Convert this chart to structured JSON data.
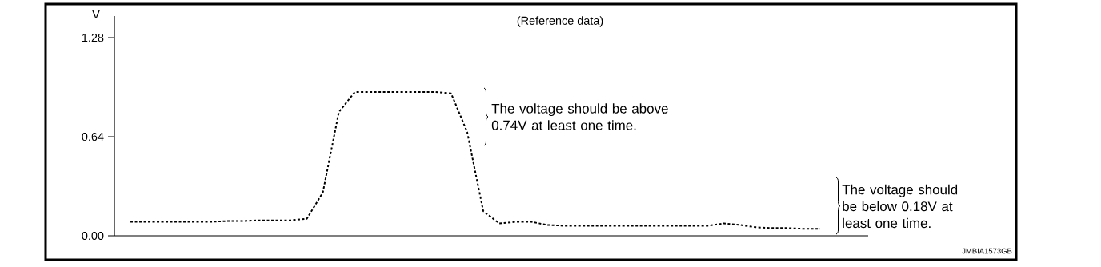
{
  "chart_data": {
    "type": "line",
    "title": "(Reference data)",
    "ylabel": "V",
    "categories": [
      null,
      null,
      null,
      null,
      null,
      null,
      null,
      null,
      null,
      null,
      null,
      null,
      null,
      null,
      null,
      null,
      null,
      null,
      null,
      null,
      null,
      null,
      null,
      null,
      null,
      null,
      null,
      null,
      null,
      null,
      null,
      null,
      null,
      null,
      null,
      null,
      null,
      null,
      null,
      null,
      null,
      null,
      null,
      null,
      null,
      null,
      null,
      null
    ],
    "series": [
      {
        "color": "#000000",
        "values": [
          null,
          0.09,
          0.09,
          0.09,
          0.09,
          0.09,
          0.09,
          0.095,
          0.095,
          0.1,
          0.1,
          0.1,
          0.11,
          0.28,
          0.8,
          0.93,
          0.93,
          0.93,
          0.93,
          0.93,
          0.93,
          0.92,
          0.67,
          0.16,
          0.08,
          0.09,
          0.09,
          0.07,
          0.065,
          0.065,
          0.065,
          0.065,
          0.065,
          0.065,
          0.065,
          0.065,
          0.065,
          0.065,
          0.08,
          0.07,
          0.055,
          0.05,
          0.05,
          0.045,
          0.045,
          null,
          null,
          null
        ]
      }
    ],
    "ylim": [
      0,
      1.42
    ],
    "yticks": [
      {
        "value": 0,
        "label": "0.00"
      },
      {
        "value": 0.64,
        "label": "0.64"
      },
      {
        "value": 1.28,
        "label": "1.28"
      }
    ],
    "line_style": "dashed",
    "marker": "none",
    "grid": false,
    "annotations": [
      "The voltage should be above 0.74V at least one time.",
      "The voltage should be below 0.18V at least one time.",
      "JMBIA1573GB"
    ]
  }
}
